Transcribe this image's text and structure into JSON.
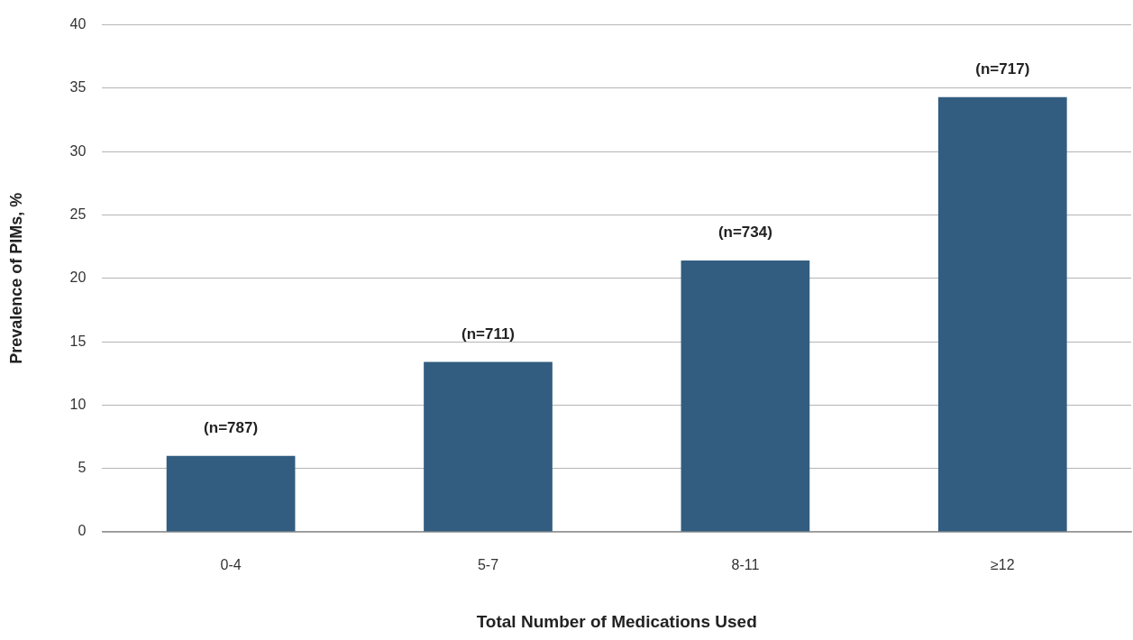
{
  "chart_data": {
    "type": "bar",
    "xlabel": "Total Number of Medications Used",
    "ylabel": "Prevalence of PIMs, %",
    "categories": [
      "0-4",
      "5-7",
      "8-11",
      "≥12"
    ],
    "values": [
      6.0,
      13.4,
      21.4,
      34.3
    ],
    "annotations": [
      {
        "text": "(n=787)",
        "x": "0-4",
        "y": 6.0
      },
      {
        "text": "(n=711)",
        "x": "5-7",
        "y": 13.4
      },
      {
        "text": "(n=734)",
        "x": "8-11",
        "y": 21.4
      },
      {
        "text": "(n=717)",
        "x": "≥12",
        "y": 34.3
      }
    ],
    "color": "#325d80",
    "ylim": [
      0,
      40
    ],
    "yticks": [
      0,
      5,
      10,
      15,
      20,
      25,
      30,
      35,
      40
    ],
    "grid": "y",
    "legend": false
  }
}
